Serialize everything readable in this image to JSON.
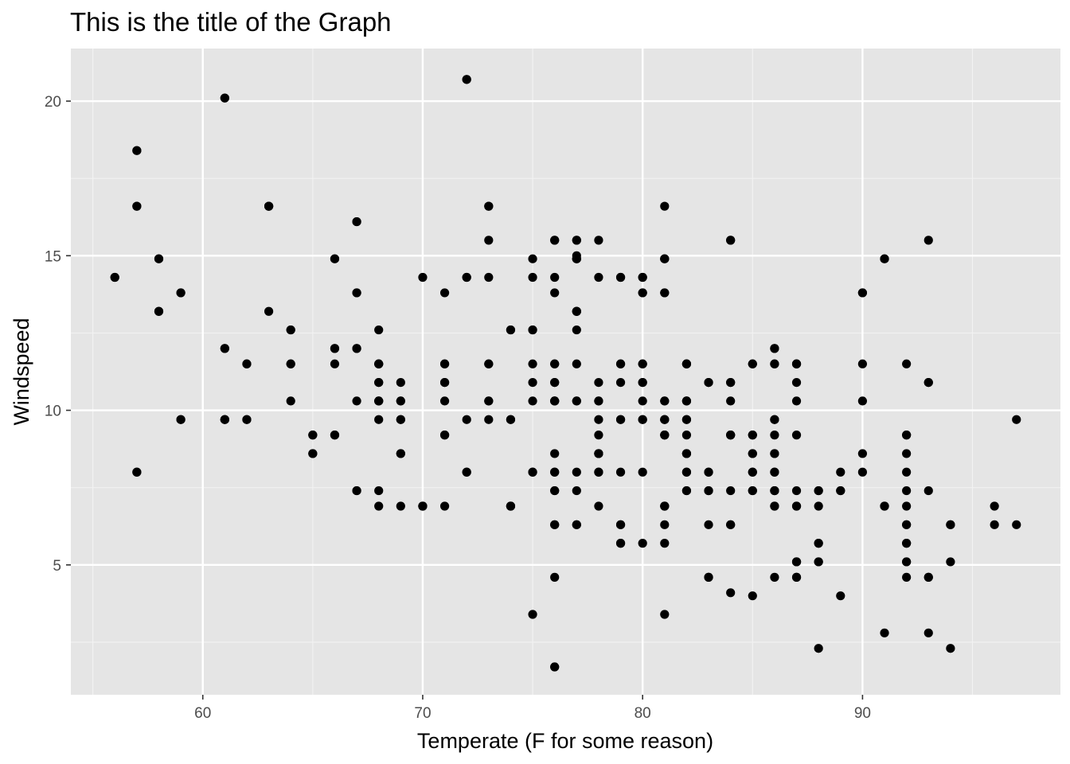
{
  "chart_data": {
    "type": "scatter",
    "title": "This is the title of the Graph",
    "xlabel": "Temperate (F for some reason)",
    "ylabel": "Windspeed",
    "xlim": [
      54,
      99
    ],
    "ylim": [
      0.8,
      21.7
    ],
    "xticks": [
      60,
      70,
      80,
      90
    ],
    "yticks": [
      5,
      10,
      15,
      20
    ],
    "grid": true,
    "colors": {
      "panel": "#e5e5e5",
      "grid_major": "#ffffff",
      "grid_minor": "#f2f2f2",
      "point": "#000000",
      "tick_mark": "#333333"
    },
    "points": [
      [
        67,
        7.4
      ],
      [
        72,
        8.0
      ],
      [
        74,
        12.6
      ],
      [
        62,
        11.5
      ],
      [
        56,
        14.3
      ],
      [
        66,
        14.9
      ],
      [
        65,
        8.6
      ],
      [
        59,
        13.8
      ],
      [
        61,
        20.1
      ],
      [
        69,
        8.6
      ],
      [
        74,
        6.9
      ],
      [
        69,
        9.7
      ],
      [
        66,
        9.2
      ],
      [
        68,
        10.9
      ],
      [
        58,
        13.2
      ],
      [
        64,
        11.5
      ],
      [
        66,
        12.0
      ],
      [
        57,
        18.4
      ],
      [
        68,
        11.5
      ],
      [
        62,
        9.7
      ],
      [
        59,
        9.7
      ],
      [
        73,
        16.6
      ],
      [
        61,
        9.7
      ],
      [
        61,
        12.0
      ],
      [
        57,
        16.6
      ],
      [
        58,
        14.9
      ],
      [
        57,
        8.0
      ],
      [
        67,
        12.0
      ],
      [
        81,
        14.9
      ],
      [
        79,
        5.7
      ],
      [
        76,
        7.4
      ],
      [
        78,
        8.6
      ],
      [
        74,
        9.7
      ],
      [
        67,
        16.1
      ],
      [
        84,
        9.2
      ],
      [
        85,
        8.6
      ],
      [
        79,
        14.3
      ],
      [
        82,
        9.7
      ],
      [
        87,
        6.9
      ],
      [
        90,
        13.8
      ],
      [
        87,
        11.5
      ],
      [
        93,
        10.9
      ],
      [
        92,
        9.2
      ],
      [
        82,
        8.0
      ],
      [
        80,
        13.8
      ],
      [
        79,
        11.5
      ],
      [
        77,
        14.9
      ],
      [
        72,
        20.7
      ],
      [
        65,
        9.2
      ],
      [
        73,
        11.5
      ],
      [
        76,
        10.3
      ],
      [
        77,
        6.3
      ],
      [
        76,
        1.7
      ],
      [
        76,
        4.6
      ],
      [
        76,
        6.3
      ],
      [
        75,
        8.0
      ],
      [
        78,
        8.0
      ],
      [
        73,
        10.3
      ],
      [
        80,
        11.5
      ],
      [
        77,
        14.9
      ],
      [
        83,
        8.0
      ],
      [
        84,
        4.1
      ],
      [
        85,
        9.2
      ],
      [
        81,
        9.2
      ],
      [
        84,
        10.9
      ],
      [
        83,
        4.6
      ],
      [
        83,
        10.9
      ],
      [
        88,
        5.1
      ],
      [
        92,
        6.3
      ],
      [
        92,
        5.7
      ],
      [
        89,
        7.4
      ],
      [
        82,
        8.6
      ],
      [
        73,
        14.3
      ],
      [
        81,
        14.9
      ],
      [
        91,
        14.9
      ],
      [
        80,
        14.3
      ],
      [
        81,
        6.9
      ],
      [
        82,
        10.3
      ],
      [
        84,
        6.3
      ],
      [
        87,
        5.1
      ],
      [
        85,
        11.5
      ],
      [
        74,
        6.9
      ],
      [
        81,
        9.7
      ],
      [
        82,
        11.5
      ],
      [
        86,
        8.6
      ],
      [
        85,
        8.0
      ],
      [
        82,
        8.6
      ],
      [
        86,
        12.0
      ],
      [
        88,
        7.4
      ],
      [
        86,
        7.4
      ],
      [
        83,
        7.4
      ],
      [
        81,
        9.2
      ],
      [
        81,
        6.9
      ],
      [
        81,
        13.8
      ],
      [
        82,
        7.4
      ],
      [
        86,
        4.6
      ],
      [
        85,
        4.0
      ],
      [
        87,
        10.3
      ],
      [
        89,
        8.0
      ],
      [
        90,
        8.6
      ],
      [
        90,
        11.5
      ],
      [
        92,
        11.5
      ],
      [
        86,
        11.5
      ],
      [
        86,
        9.7
      ],
      [
        82,
        11.5
      ],
      [
        80,
        10.3
      ],
      [
        79,
        6.3
      ],
      [
        77,
        7.4
      ],
      [
        79,
        10.9
      ],
      [
        76,
        10.3
      ],
      [
        78,
        15.5
      ],
      [
        78,
        14.3
      ],
      [
        77,
        12.6
      ],
      [
        72,
        9.7
      ],
      [
        75,
        3.4
      ],
      [
        79,
        8.0
      ],
      [
        81,
        5.7
      ],
      [
        86,
        9.7
      ],
      [
        88,
        2.3
      ],
      [
        97,
        6.3
      ],
      [
        94,
        6.3
      ],
      [
        96,
        6.9
      ],
      [
        94,
        5.1
      ],
      [
        91,
        2.8
      ],
      [
        92,
        4.6
      ],
      [
        93,
        7.4
      ],
      [
        93,
        15.5
      ],
      [
        87,
        10.9
      ],
      [
        84,
        10.3
      ],
      [
        80,
        10.9
      ],
      [
        78,
        9.7
      ],
      [
        75,
        14.9
      ],
      [
        73,
        15.5
      ],
      [
        81,
        6.3
      ],
      [
        76,
        10.9
      ],
      [
        77,
        11.5
      ],
      [
        71,
        6.9
      ],
      [
        71,
        13.8
      ],
      [
        78,
        10.3
      ],
      [
        67,
        10.3
      ],
      [
        76,
        8.0
      ],
      [
        68,
        12.6
      ],
      [
        82,
        9.2
      ],
      [
        64,
        10.3
      ],
      [
        71,
        10.3
      ],
      [
        81,
        16.6
      ],
      [
        69,
        6.9
      ],
      [
        63,
        13.2
      ],
      [
        70,
        14.3
      ],
      [
        77,
        8.0
      ],
      [
        75,
        11.5
      ],
      [
        76,
        10.9
      ],
      [
        68,
        9.7
      ],
      [
        75,
        10.3
      ],
      [
        91,
        6.9
      ],
      [
        92,
        8.0
      ],
      [
        93,
        4.6
      ],
      [
        92,
        5.1
      ],
      [
        92,
        7.4
      ],
      [
        86,
        9.2
      ],
      [
        87,
        4.6
      ],
      [
        84,
        15.5
      ],
      [
        80,
        9.7
      ],
      [
        81,
        9.7
      ],
      [
        76,
        13.8
      ],
      [
        76,
        15.5
      ],
      [
        77,
        15.5
      ],
      [
        72,
        14.3
      ],
      [
        87,
        11.5
      ],
      [
        86,
        8.0
      ],
      [
        83,
        10.9
      ],
      [
        68,
        6.9
      ],
      [
        86,
        7.4
      ],
      [
        84,
        9.2
      ],
      [
        80,
        5.7
      ],
      [
        87,
        5.1
      ],
      [
        88,
        5.7
      ],
      [
        81,
        9.7
      ],
      [
        80,
        8.0
      ],
      [
        76,
        10.3
      ],
      [
        78,
        8.6
      ],
      [
        78,
        9.2
      ],
      [
        79,
        9.7
      ],
      [
        71,
        11.5
      ],
      [
        77,
        10.3
      ],
      [
        61,
        9.7
      ],
      [
        77,
        15.0
      ],
      [
        76,
        8.6
      ],
      [
        83,
        6.3
      ],
      [
        85,
        7.4
      ],
      [
        87,
        9.2
      ],
      [
        92,
        6.9
      ],
      [
        84,
        7.4
      ],
      [
        80,
        13.8
      ],
      [
        81,
        10.3
      ],
      [
        82,
        10.3
      ],
      [
        88,
        6.9
      ],
      [
        68,
        7.4
      ],
      [
        71,
        10.9
      ],
      [
        69,
        10.9
      ],
      [
        63,
        16.6
      ],
      [
        70,
        6.9
      ],
      [
        77,
        13.2
      ],
      [
        75,
        12.6
      ],
      [
        76,
        11.5
      ],
      [
        68,
        10.3
      ],
      [
        66,
        11.5
      ],
      [
        67,
        13.8
      ],
      [
        76,
        14.3
      ],
      [
        68,
        11.5
      ],
      [
        64,
        12.6
      ],
      [
        71,
        9.2
      ],
      [
        81,
        14.9
      ],
      [
        69,
        10.3
      ],
      [
        63,
        16.6
      ],
      [
        70,
        6.9
      ],
      [
        77,
        13.2
      ],
      [
        75,
        12.6
      ],
      [
        76,
        11.5
      ],
      [
        68,
        10.3
      ],
      [
        89,
        4.0
      ],
      [
        90,
        10.3
      ],
      [
        93,
        2.8
      ],
      [
        94,
        2.3
      ],
      [
        97,
        9.7
      ],
      [
        92,
        9.2
      ],
      [
        93,
        10.9
      ],
      [
        91,
        6.9
      ],
      [
        92,
        8.6
      ],
      [
        90,
        8.0
      ],
      [
        86,
        6.9
      ],
      [
        85,
        9.2
      ],
      [
        87,
        7.4
      ],
      [
        81,
        3.4
      ],
      [
        84,
        9.2
      ],
      [
        85,
        11.5
      ],
      [
        75,
        14.3
      ],
      [
        73,
        9.7
      ],
      [
        72,
        14.3
      ],
      [
        72,
        8.0
      ],
      [
        74,
        9.7
      ],
      [
        71,
        9.2
      ],
      [
        69,
        9.7
      ],
      [
        67,
        12.0
      ],
      [
        66,
        9.2
      ],
      [
        65,
        9.2
      ],
      [
        61,
        12.0
      ],
      [
        62,
        11.5
      ],
      [
        58,
        13.2
      ],
      [
        57,
        16.6
      ],
      [
        57,
        8.0
      ],
      [
        58,
        14.9
      ],
      [
        59,
        13.8
      ],
      [
        59,
        9.7
      ],
      [
        56,
        14.3
      ],
      [
        57,
        18.4
      ],
      [
        61,
        20.1
      ],
      [
        72,
        20.7
      ],
      [
        73,
        16.6
      ],
      [
        84,
        15.5
      ],
      [
        77,
        15.5
      ],
      [
        81,
        13.8
      ],
      [
        80,
        14.3
      ],
      [
        79,
        14.3
      ],
      [
        80,
        11.5
      ],
      [
        78,
        10.9
      ],
      [
        78,
        10.3
      ],
      [
        79,
        11.5
      ],
      [
        82,
        11.5
      ],
      [
        85,
        8.6
      ],
      [
        86,
        8.6
      ],
      [
        86,
        6.9
      ],
      [
        87,
        6.9
      ],
      [
        88,
        7.4
      ],
      [
        89,
        7.4
      ],
      [
        90,
        13.8
      ],
      [
        91,
        14.9
      ],
      [
        96,
        6.3
      ],
      [
        94,
        6.3
      ],
      [
        92,
        6.3
      ],
      [
        92,
        5.7
      ],
      [
        92,
        5.1
      ],
      [
        87,
        4.6
      ],
      [
        83,
        4.6
      ],
      [
        76,
        1.7
      ],
      [
        76,
        6.3
      ],
      [
        77,
        6.3
      ],
      [
        78,
        6.9
      ],
      [
        79,
        6.3
      ],
      [
        79,
        5.7
      ],
      [
        82,
        7.4
      ],
      [
        82,
        8.0
      ],
      [
        83,
        8.0
      ],
      [
        83,
        7.4
      ],
      [
        84,
        6.3
      ],
      [
        80,
        9.7
      ],
      [
        80,
        10.9
      ],
      [
        81,
        10.3
      ],
      [
        81,
        9.2
      ],
      [
        81,
        6.9
      ],
      [
        75,
        10.9
      ],
      [
        76,
        8.0
      ],
      [
        76,
        7.4
      ],
      [
        75,
        8.0
      ],
      [
        74,
        6.9
      ],
      [
        74,
        12.6
      ],
      [
        73,
        11.5
      ],
      [
        73,
        10.3
      ],
      [
        71,
        10.9
      ],
      [
        71,
        11.5
      ],
      [
        70,
        6.9
      ],
      [
        69,
        8.6
      ],
      [
        69,
        10.3
      ],
      [
        68,
        10.3
      ],
      [
        68,
        11.5
      ],
      [
        68,
        10.9
      ],
      [
        67,
        7.4
      ],
      [
        67,
        13.8
      ],
      [
        67,
        16.1
      ],
      [
        66,
        12.0
      ],
      [
        66,
        14.9
      ],
      [
        65,
        8.6
      ],
      [
        64,
        11.5
      ],
      [
        64,
        12.6
      ],
      [
        63,
        16.6
      ],
      [
        62,
        9.7
      ],
      [
        61,
        9.7
      ],
      [
        76,
        15.5
      ],
      [
        76,
        10.3
      ],
      [
        77,
        14.9
      ],
      [
        77,
        13.2
      ],
      [
        77,
        10.3
      ],
      [
        78,
        8.0
      ],
      [
        78,
        8.6
      ],
      [
        79,
        9.7
      ],
      [
        82,
        8.6
      ],
      [
        82,
        9.7
      ],
      [
        82,
        10.3
      ],
      [
        84,
        10.9
      ],
      [
        85,
        7.4
      ],
      [
        85,
        8.0
      ],
      [
        86,
        8.0
      ],
      [
        86,
        7.4
      ],
      [
        86,
        11.5
      ],
      [
        86,
        12.0
      ],
      [
        87,
        11.5
      ],
      [
        87,
        5.1
      ],
      [
        88,
        5.1
      ],
      [
        88,
        5.7
      ],
      [
        93,
        4.6
      ]
    ]
  }
}
